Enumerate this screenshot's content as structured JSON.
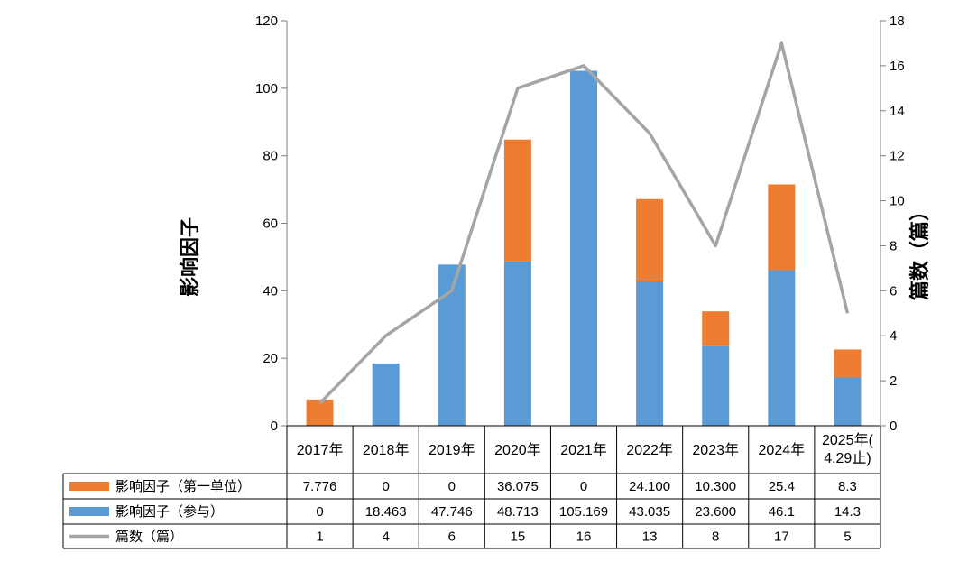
{
  "chart_data": {
    "type": "bar",
    "stacked": true,
    "categories": [
      "2017年",
      "2018年",
      "2019年",
      "2020年",
      "2021年",
      "2022年",
      "2023年",
      "2024年",
      "2025年(4.29止)"
    ],
    "category_lines": [
      [
        "2017年"
      ],
      [
        "2018年"
      ],
      [
        "2019年"
      ],
      [
        "2020年"
      ],
      [
        "2021年"
      ],
      [
        "2022年"
      ],
      [
        "2023年"
      ],
      [
        "2024年"
      ],
      [
        "2025年(",
        "4.29止)"
      ]
    ],
    "series": [
      {
        "name": "影响因子（参与）",
        "type": "bar",
        "axis": "left",
        "color": "#5b9bd5",
        "values": [
          0,
          18.463,
          47.746,
          48.713,
          105.169,
          43.035,
          23.6,
          46.1,
          14.3
        ],
        "labels": [
          "0",
          "18.463",
          "47.746",
          "48.713",
          "105.169",
          "43.035",
          "23.600",
          "46.1",
          "14.3"
        ]
      },
      {
        "name": "影响因子（第一单位）",
        "type": "bar",
        "axis": "left",
        "color": "#ed7d31",
        "values": [
          7.776,
          0,
          0,
          36.075,
          0,
          24.1,
          10.3,
          25.4,
          8.3
        ],
        "labels": [
          "7.776",
          "0",
          "0",
          "36.075",
          "0",
          "24.100",
          "10.300",
          "25.4",
          "8.3"
        ]
      },
      {
        "name": "篇数（篇）",
        "type": "line",
        "axis": "right",
        "color": "#a5a5a5",
        "values": [
          1,
          4,
          6,
          15,
          16,
          13,
          8,
          17,
          5
        ],
        "labels": [
          "1",
          "4",
          "6",
          "15",
          "16",
          "13",
          "8",
          "17",
          "5"
        ]
      }
    ],
    "table_rows": [
      "影响因子（第一单位）",
      "影响因子（参与）",
      "篇数（篇）"
    ],
    "ylabel": "影响因子",
    "y2label": "篇数（篇）",
    "ylim": [
      0,
      120
    ],
    "yticks": [
      0,
      20,
      40,
      60,
      80,
      100,
      120
    ],
    "y2lim": [
      0,
      18
    ],
    "y2ticks": [
      0,
      2,
      4,
      6,
      8,
      10,
      12,
      14,
      16,
      18
    ],
    "legend": "data-table",
    "grid": false
  }
}
